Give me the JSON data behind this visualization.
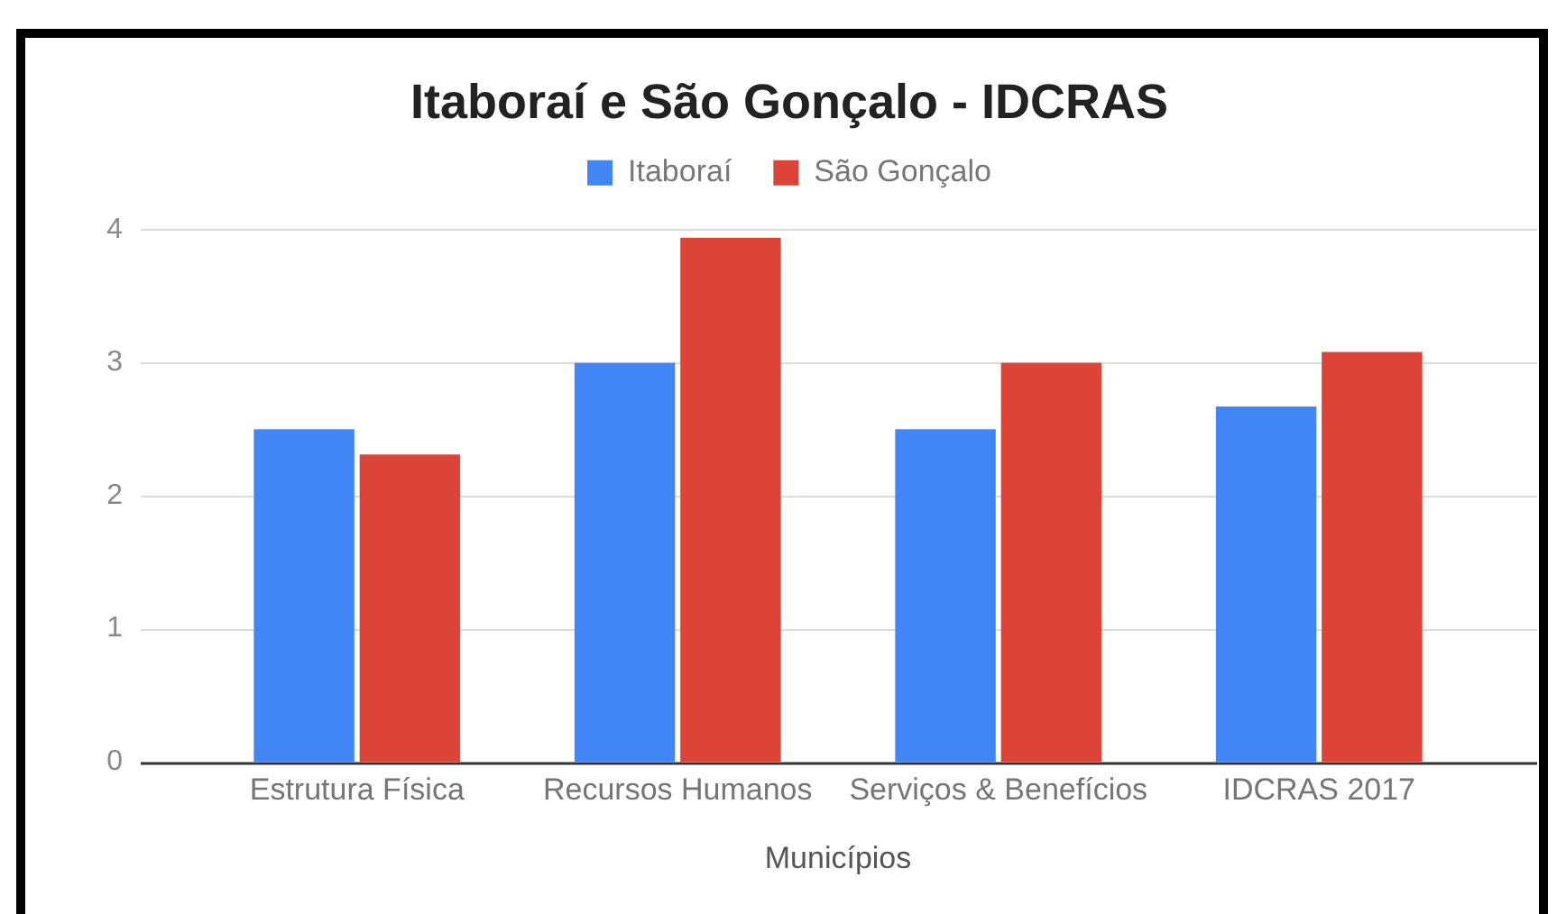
{
  "chart_data": {
    "type": "bar",
    "title": "Itaboraí e São Gonçalo - IDCRAS",
    "xlabel": "Municípios",
    "categories": [
      "Estrutura Física",
      "Recursos Humanos",
      "Serviços & Benefícios",
      "IDCRAS 2017"
    ],
    "series": [
      {
        "name": "Itaboraí",
        "color": "#4285f4",
        "values": [
          2.5,
          3,
          2.5,
          2.67
        ]
      },
      {
        "name": "São Gonçalo",
        "color": "#db4437",
        "values": [
          2.31,
          3.94,
          3,
          3.08
        ]
      }
    ],
    "ylim": [
      0,
      4
    ],
    "yticks": [
      0,
      1,
      2,
      3,
      4
    ],
    "grid": "y",
    "legend": "top"
  }
}
